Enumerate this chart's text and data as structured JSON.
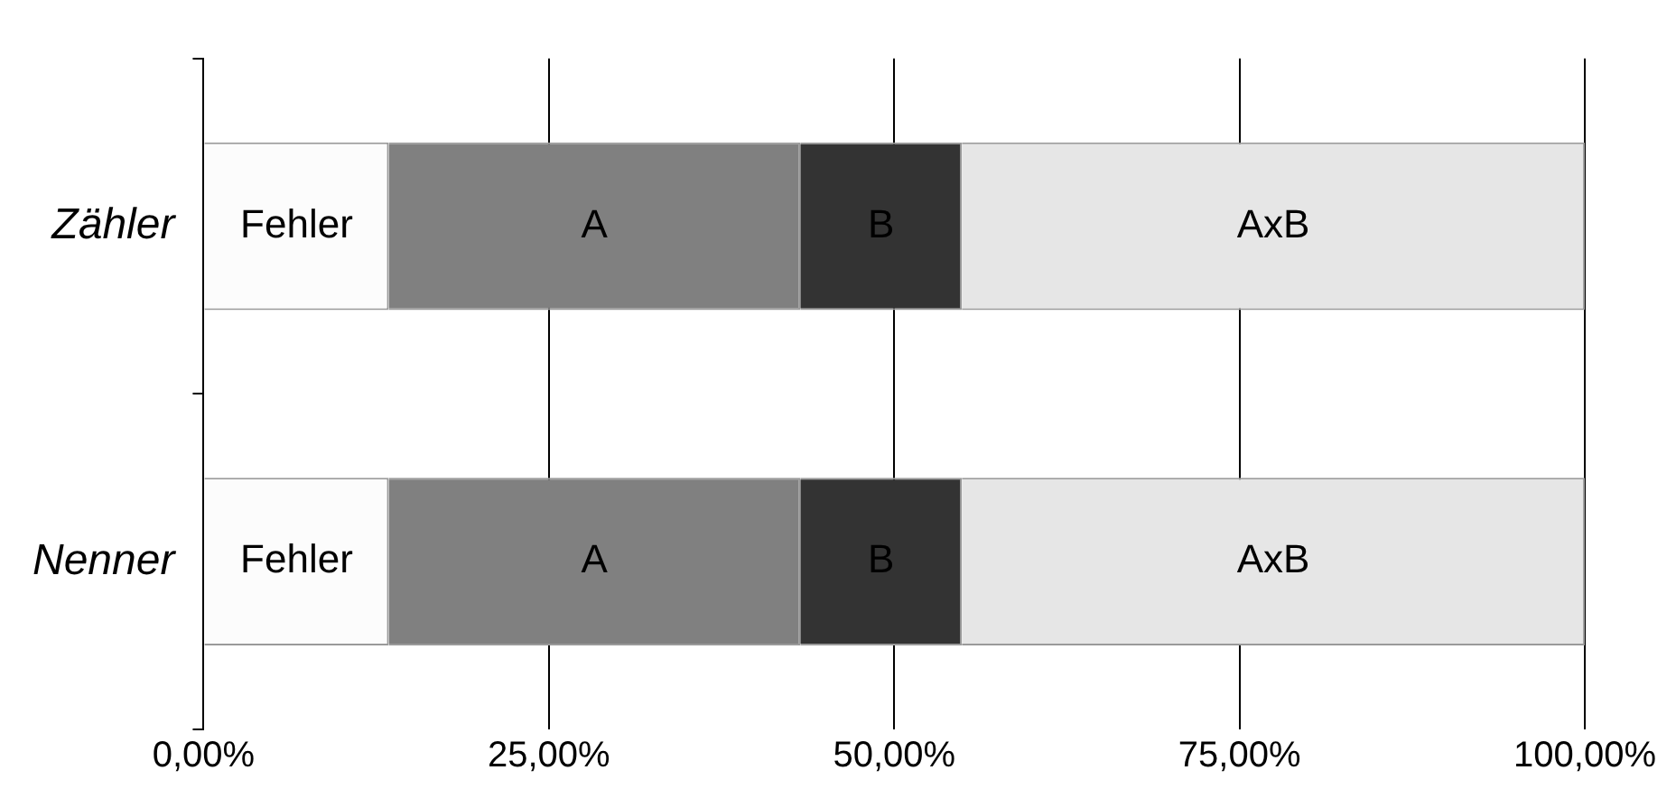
{
  "chart_data": {
    "type": "bar",
    "orientation": "horizontal",
    "stacked": true,
    "categories": [
      "Zähler",
      "Nenner"
    ],
    "series": [
      {
        "name": "Fehler",
        "color": "#fcfcfc",
        "values": [
          13.4,
          13.4
        ]
      },
      {
        "name": "A",
        "color": "#808080",
        "values": [
          29.8,
          29.8
        ]
      },
      {
        "name": "B",
        "color": "#333333",
        "values": [
          11.7,
          11.7
        ]
      },
      {
        "name": "AxB",
        "color": "#e6e6e6",
        "values": [
          45.1,
          45.1
        ]
      }
    ],
    "xlim": [
      0,
      100
    ],
    "xticks": [
      {
        "value": 0,
        "label": "0,00%"
      },
      {
        "value": 25,
        "label": "25,00%"
      },
      {
        "value": 50,
        "label": "50,00%"
      },
      {
        "value": 75,
        "label": "75,00%"
      },
      {
        "value": 100,
        "label": "100,00%"
      }
    ],
    "grid": "x",
    "legend": false
  }
}
